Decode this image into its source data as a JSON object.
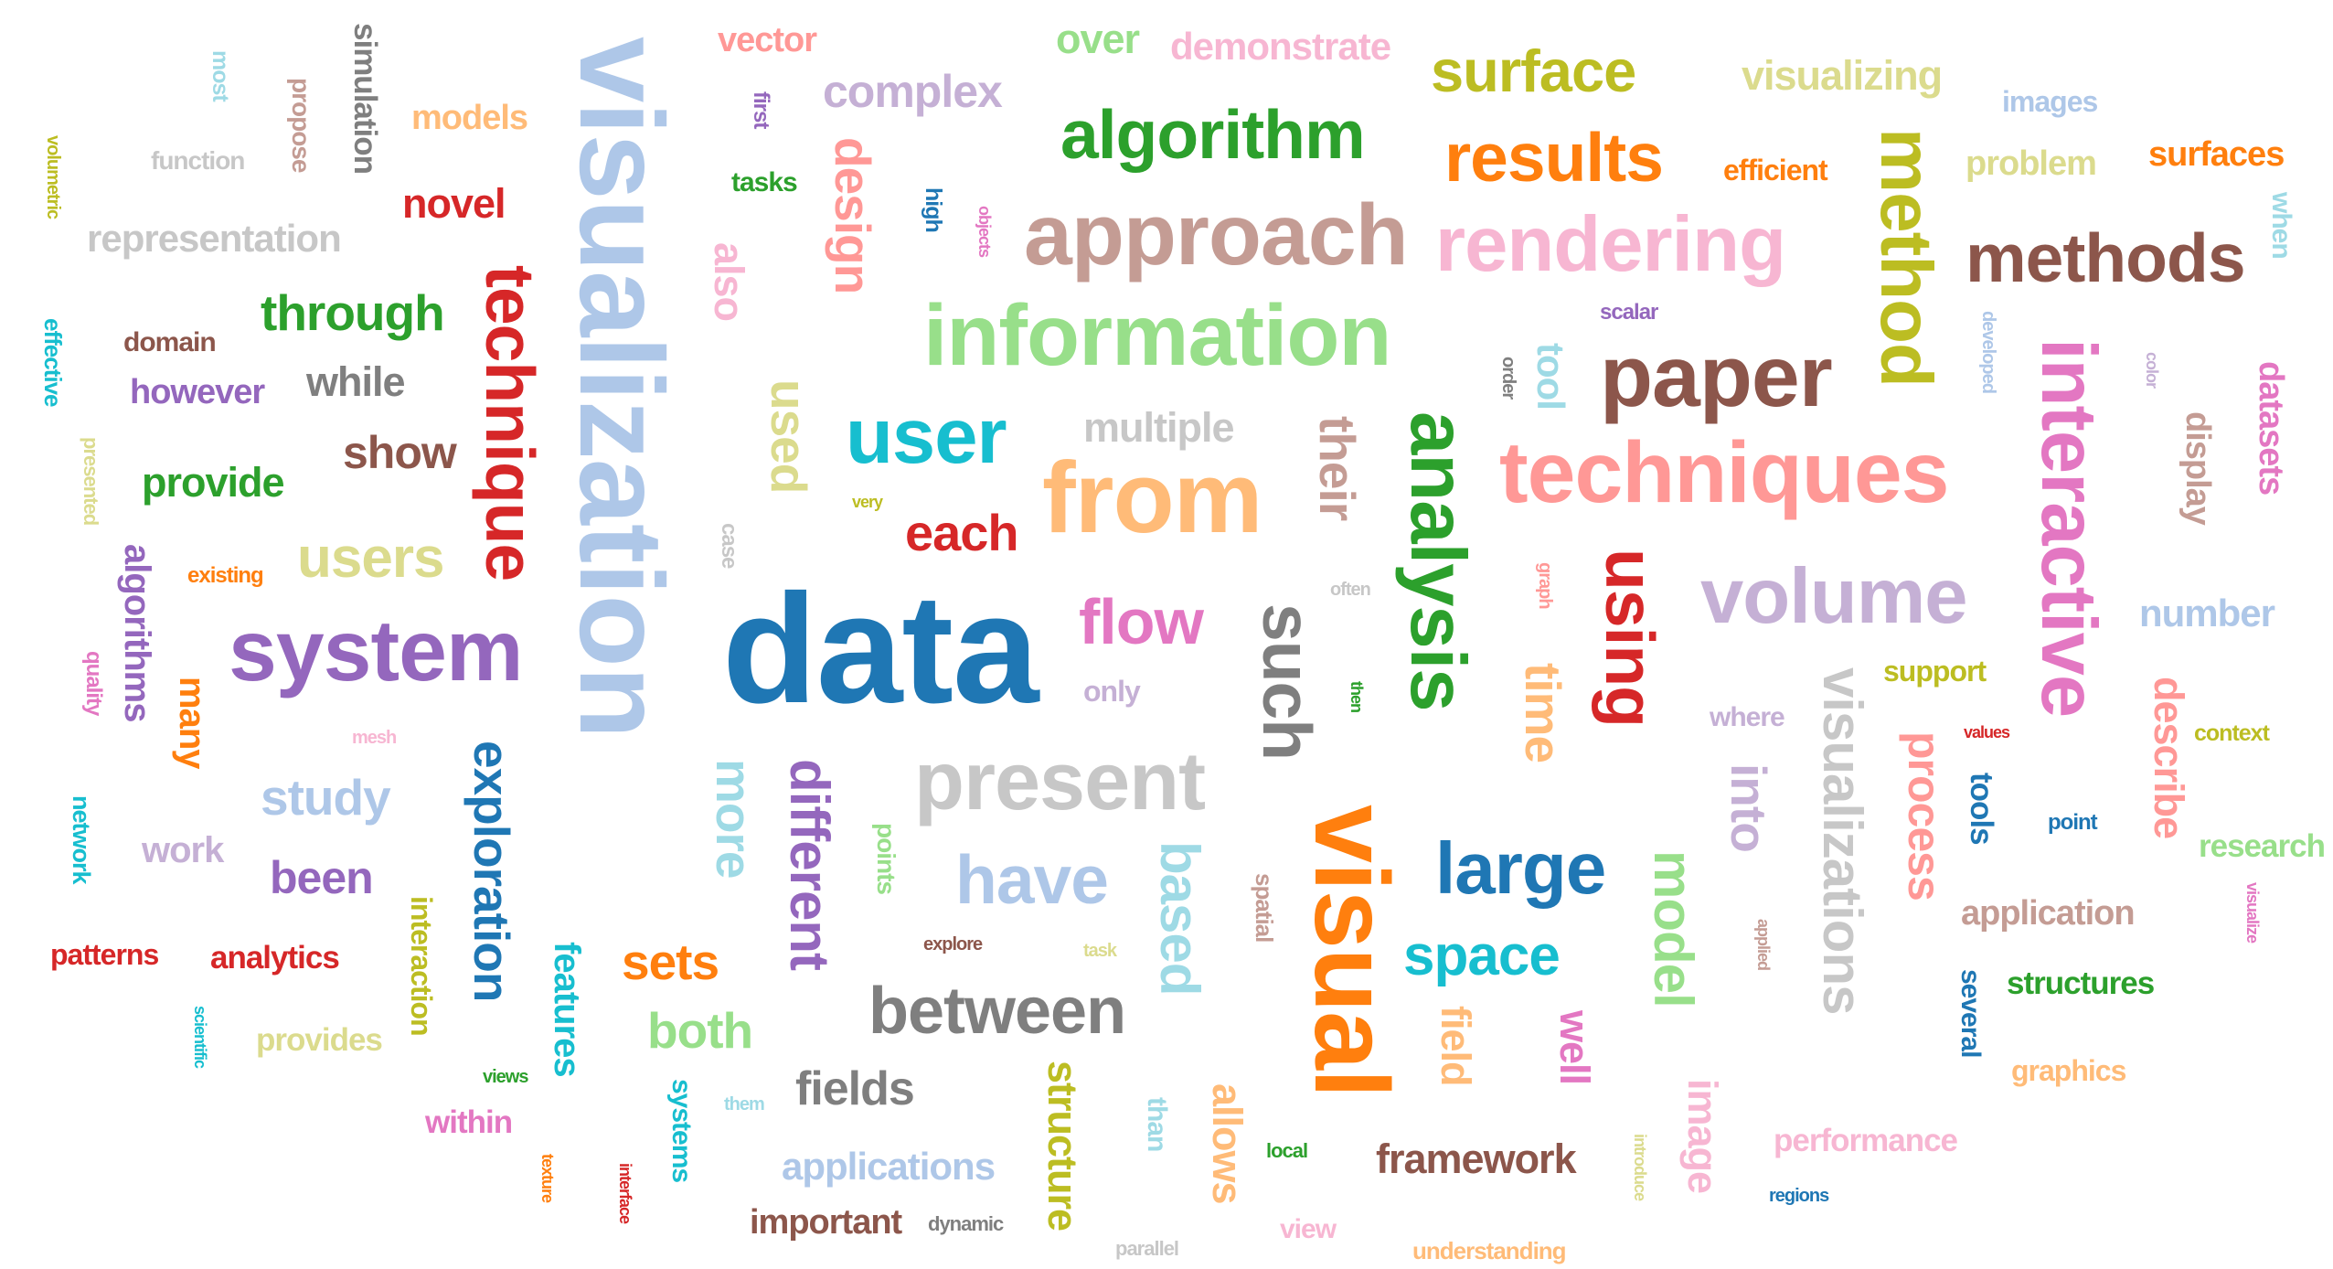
{
  "words": [
    {
      "text": "data",
      "color": "#1f77b4"
    },
    {
      "text": "visualization",
      "color": "#aec7e8"
    },
    {
      "text": "information",
      "color": "#98df8a"
    },
    {
      "text": "techniques",
      "color": "#ff9896"
    },
    {
      "text": "from",
      "color": "#ffbb78"
    },
    {
      "text": "approach",
      "color": "#c49c94"
    },
    {
      "text": "rendering",
      "color": "#f7b6d2"
    },
    {
      "text": "analysis",
      "color": "#2ca02c"
    },
    {
      "text": "visual",
      "color": "#ff7f0e"
    },
    {
      "text": "system",
      "color": "#9467bd"
    },
    {
      "text": "paper",
      "color": "#8c564b"
    },
    {
      "text": "volume",
      "color": "#c5b0d5"
    },
    {
      "text": "present",
      "color": "#c7c7c7"
    },
    {
      "text": "interactive",
      "color": "#e377c2"
    },
    {
      "text": "method",
      "color": "#bcbd22"
    },
    {
      "text": "algorithm",
      "color": "#2ca02c"
    },
    {
      "text": "results",
      "color": "#ff7f0e"
    },
    {
      "text": "methods",
      "color": "#8c564b"
    },
    {
      "text": "technique",
      "color": "#d62728"
    },
    {
      "text": "using",
      "color": "#d62728"
    },
    {
      "text": "such",
      "color": "#7f7f7f"
    },
    {
      "text": "user",
      "color": "#17becf"
    },
    {
      "text": "large",
      "color": "#1f77b4"
    },
    {
      "text": "surface",
      "color": "#bcbd22"
    },
    {
      "text": "between",
      "color": "#7f7f7f"
    },
    {
      "text": "exploration",
      "color": "#1f77b4"
    },
    {
      "text": "different",
      "color": "#9467bd"
    },
    {
      "text": "visualizations",
      "color": "#c7c7c7"
    },
    {
      "text": "based",
      "color": "#9edae5"
    },
    {
      "text": "model",
      "color": "#98df8a"
    },
    {
      "text": "have",
      "color": "#aec7e8"
    },
    {
      "text": "flow",
      "color": "#e377c2"
    },
    {
      "text": "space",
      "color": "#17becf"
    },
    {
      "text": "through",
      "color": "#2ca02c"
    },
    {
      "text": "users",
      "color": "#dbdb8d"
    },
    {
      "text": "each",
      "color": "#d62728"
    },
    {
      "text": "their",
      "color": "#c49c94"
    },
    {
      "text": "time",
      "color": "#ffbb78"
    },
    {
      "text": "design",
      "color": "#ff9896"
    },
    {
      "text": "used",
      "color": "#dbdb8d"
    },
    {
      "text": "study",
      "color": "#aec7e8"
    },
    {
      "text": "sets",
      "color": "#ff7f0e"
    },
    {
      "text": "both",
      "color": "#98df8a"
    },
    {
      "text": "fields",
      "color": "#7f7f7f"
    },
    {
      "text": "framework",
      "color": "#8c564b"
    },
    {
      "text": "structure",
      "color": "#bcbd22"
    },
    {
      "text": "allows",
      "color": "#ffbb78"
    },
    {
      "text": "image",
      "color": "#f7b6d2"
    },
    {
      "text": "process",
      "color": "#ff9896"
    },
    {
      "text": "into",
      "color": "#c5b0d5"
    },
    {
      "text": "field",
      "color": "#ffbb78"
    },
    {
      "text": "well",
      "color": "#e377c2"
    },
    {
      "text": "more",
      "color": "#9edae5"
    },
    {
      "text": "features",
      "color": "#17becf"
    },
    {
      "text": "applications",
      "color": "#aec7e8"
    },
    {
      "text": "important",
      "color": "#8c564b"
    },
    {
      "text": "novel",
      "color": "#d62728"
    },
    {
      "text": "show",
      "color": "#8c564b"
    },
    {
      "text": "provide",
      "color": "#2ca02c"
    },
    {
      "text": "representation",
      "color": "#c7c7c7"
    },
    {
      "text": "complex",
      "color": "#c5b0d5"
    },
    {
      "text": "visualizing",
      "color": "#dbdb8d"
    },
    {
      "text": "demonstrate",
      "color": "#f7b6d2"
    },
    {
      "text": "over",
      "color": "#98df8a"
    },
    {
      "text": "vector",
      "color": "#ff9896"
    },
    {
      "text": "models",
      "color": "#ffbb78"
    },
    {
      "text": "simulation",
      "color": "#7f7f7f"
    },
    {
      "text": "while",
      "color": "#7f7f7f"
    },
    {
      "text": "however",
      "color": "#9467bd"
    },
    {
      "text": "domain",
      "color": "#8c564b"
    },
    {
      "text": "multiple",
      "color": "#c7c7c7"
    },
    {
      "text": "tool",
      "color": "#9edae5"
    },
    {
      "text": "datasets",
      "color": "#e377c2"
    },
    {
      "text": "display",
      "color": "#c49c94"
    },
    {
      "text": "number",
      "color": "#aec7e8"
    },
    {
      "text": "describe",
      "color": "#ff9896"
    },
    {
      "text": "surfaces",
      "color": "#ff7f0e"
    },
    {
      "text": "problem",
      "color": "#dbdb8d"
    },
    {
      "text": "images",
      "color": "#aec7e8"
    },
    {
      "text": "efficient",
      "color": "#ff7f0e"
    },
    {
      "text": "algorithms",
      "color": "#9467bd"
    },
    {
      "text": "many",
      "color": "#ff7f0e"
    },
    {
      "text": "work",
      "color": "#c5b0d5"
    },
    {
      "text": "been",
      "color": "#9467bd"
    },
    {
      "text": "analytics",
      "color": "#d62728"
    },
    {
      "text": "interaction",
      "color": "#bcbd22"
    },
    {
      "text": "patterns",
      "color": "#d62728"
    },
    {
      "text": "network",
      "color": "#17becf"
    },
    {
      "text": "provides",
      "color": "#dbdb8d"
    },
    {
      "text": "within",
      "color": "#e377c2"
    },
    {
      "text": "systems",
      "color": "#17becf"
    },
    {
      "text": "tools",
      "color": "#1f77b4"
    },
    {
      "text": "application",
      "color": "#c49c94"
    },
    {
      "text": "structures",
      "color": "#2ca02c"
    },
    {
      "text": "several",
      "color": "#1f77b4"
    },
    {
      "text": "graphics",
      "color": "#ffbb78"
    },
    {
      "text": "research",
      "color": "#98df8a"
    },
    {
      "text": "context",
      "color": "#bcbd22"
    },
    {
      "text": "support",
      "color": "#bcbd22"
    },
    {
      "text": "where",
      "color": "#c5b0d5"
    },
    {
      "text": "performance",
      "color": "#f7b6d2"
    },
    {
      "text": "understanding",
      "color": "#ffbb78"
    },
    {
      "text": "regions",
      "color": "#1f77b4"
    },
    {
      "text": "view",
      "color": "#f7b6d2"
    },
    {
      "text": "local",
      "color": "#2ca02c"
    },
    {
      "text": "than",
      "color": "#9edae5"
    },
    {
      "text": "parallel",
      "color": "#c7c7c7"
    },
    {
      "text": "dynamic",
      "color": "#7f7f7f"
    },
    {
      "text": "explore",
      "color": "#8c564b"
    },
    {
      "text": "task",
      "color": "#dbdb8d"
    },
    {
      "text": "spatial",
      "color": "#c49c94"
    },
    {
      "text": "points",
      "color": "#98df8a"
    },
    {
      "text": "only",
      "color": "#c5b0d5"
    },
    {
      "text": "then",
      "color": "#2ca02c"
    },
    {
      "text": "often",
      "color": "#c7c7c7"
    },
    {
      "text": "graph",
      "color": "#ff9896"
    },
    {
      "text": "order",
      "color": "#7f7f7f"
    },
    {
      "text": "scalar",
      "color": "#9467bd"
    },
    {
      "text": "developed",
      "color": "#aec7e8"
    },
    {
      "text": "color",
      "color": "#c5b0d5"
    },
    {
      "text": "when",
      "color": "#9edae5"
    },
    {
      "text": "values",
      "color": "#d62728"
    },
    {
      "text": "point",
      "color": "#1f77b4"
    },
    {
      "text": "visualize",
      "color": "#e377c2"
    },
    {
      "text": "applied",
      "color": "#c49c94"
    },
    {
      "text": "introduce",
      "color": "#dbdb8d"
    },
    {
      "text": "case",
      "color": "#c7c7c7"
    },
    {
      "text": "very",
      "color": "#bcbd22"
    },
    {
      "text": "existing",
      "color": "#ff7f0e"
    },
    {
      "text": "quality",
      "color": "#e377c2"
    },
    {
      "text": "mesh",
      "color": "#f7b6d2"
    },
    {
      "text": "presented",
      "color": "#dbdb8d"
    },
    {
      "text": "effective",
      "color": "#17becf"
    },
    {
      "text": "volumetric",
      "color": "#bcbd22"
    },
    {
      "text": "function",
      "color": "#c7c7c7"
    },
    {
      "text": "most",
      "color": "#9edae5"
    },
    {
      "text": "propose",
      "color": "#c49c94"
    },
    {
      "text": "first",
      "color": "#9467bd"
    },
    {
      "text": "tasks",
      "color": "#2ca02c"
    },
    {
      "text": "also",
      "color": "#f7b6d2"
    },
    {
      "text": "high",
      "color": "#1f77b4"
    },
    {
      "text": "objects",
      "color": "#e377c2"
    },
    {
      "text": "scientific",
      "color": "#17becf"
    },
    {
      "text": "views",
      "color": "#2ca02c"
    },
    {
      "text": "them",
      "color": "#9edae5"
    },
    {
      "text": "texture",
      "color": "#ff7f0e"
    },
    {
      "text": "interface",
      "color": "#d62728"
    }
  ]
}
